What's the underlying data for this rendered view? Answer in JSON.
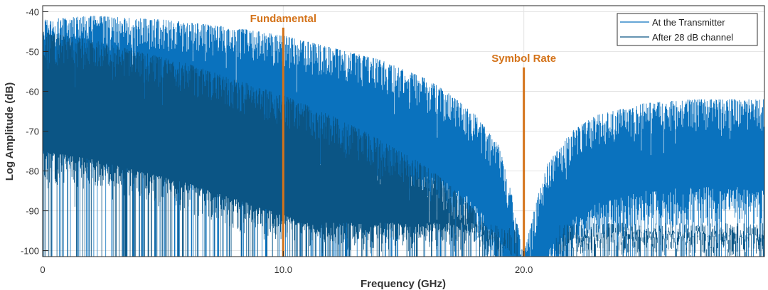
{
  "chart_data": {
    "type": "line",
    "title": "",
    "xlabel": "Frequency (GHz)",
    "ylabel": "Log Amplitude (dB)",
    "xlim": [
      0,
      30
    ],
    "ylim": [
      -101.5,
      -38.5
    ],
    "xticks": [
      0,
      10,
      20
    ],
    "xtick_labels": [
      "0",
      "10.0",
      "20.0"
    ],
    "yticks": [
      -40,
      -50,
      -60,
      -70,
      -80,
      -90,
      -100
    ],
    "ytick_labels": [
      "-40",
      "-50",
      "-60",
      "-70",
      "-80",
      "-90",
      "-100"
    ],
    "grid": true,
    "legend_position": "top-right",
    "series": [
      {
        "name": "At the Transmitter",
        "color": "#0a72be",
        "envelope_x": [
          0,
          2,
          5,
          8,
          10,
          12,
          14,
          16,
          17,
          18,
          19,
          19.5,
          20,
          20.5,
          21,
          22,
          23,
          25,
          27,
          30
        ],
        "envelope_y": [
          -42,
          -41,
          -42,
          -44,
          -46,
          -49,
          -52,
          -57,
          -61,
          -66,
          -74,
          -86,
          -101,
          -88,
          -78,
          -70,
          -66,
          -63,
          -62,
          -62
        ],
        "floor_y": -96
      },
      {
        "name": "After 28 dB channel",
        "color": "#0b5585",
        "envelope_x": [
          0,
          2,
          4,
          6,
          8,
          10,
          12,
          14,
          16,
          17,
          18,
          19,
          20,
          21,
          22,
          24,
          26,
          28,
          30
        ],
        "envelope_y": [
          -45,
          -47,
          -50,
          -53,
          -57,
          -61,
          -66,
          -72,
          -79,
          -84,
          -90,
          -97,
          -103,
          -103,
          -97,
          -95,
          -95,
          -95,
          -96
        ],
        "floor_y": -101
      }
    ],
    "annotations": [
      {
        "text": "Fundamental",
        "x": 10,
        "y_top": -44,
        "color": "#d4731a"
      },
      {
        "text": "Symbol Rate",
        "x": 20,
        "y_top": -54,
        "color": "#d4731a"
      }
    ]
  }
}
